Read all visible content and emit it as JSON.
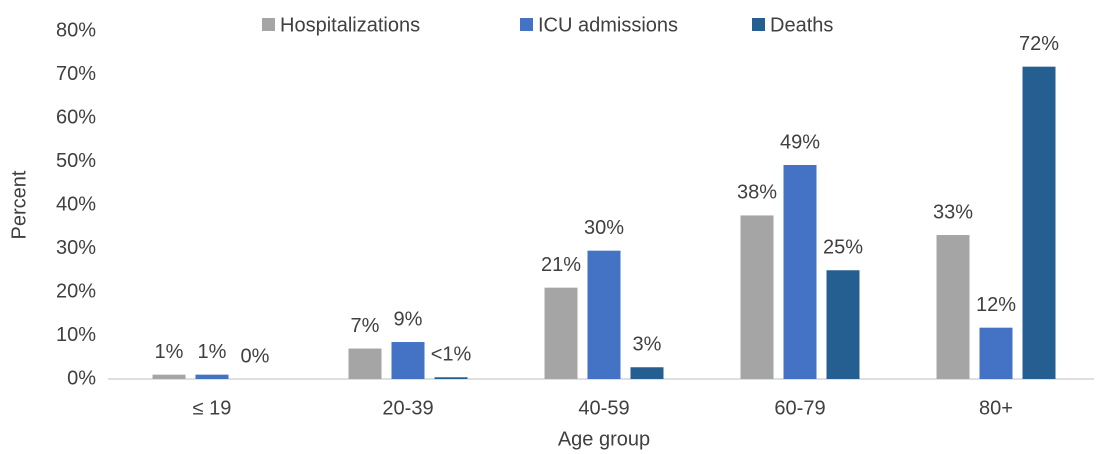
{
  "chart_data": {
    "type": "bar",
    "x_label": "Age group",
    "y_label": "Percent",
    "categories": [
      "≤ 19",
      "20-39",
      "40-59",
      "60-79",
      "80+"
    ],
    "series": [
      {
        "name": "Hospitalizations",
        "color": "#a5a5a5",
        "values": [
          1,
          7,
          21,
          37.6,
          33.1
        ],
        "value_labels": [
          "1%",
          "7%",
          "21%",
          "38%",
          "33%"
        ]
      },
      {
        "name": "ICU admissions",
        "color": "#4472c4",
        "values": [
          1,
          8.5,
          29.5,
          49.2,
          11.8
        ],
        "value_labels": [
          "1%",
          "9%",
          "30%",
          "49%",
          "12%"
        ]
      },
      {
        "name": "Deaths",
        "color": "#255e91",
        "values": [
          0,
          0.4,
          2.7,
          25,
          71.8
        ],
        "value_labels": [
          "0%",
          "<1%",
          "3%",
          "25%",
          "72%"
        ]
      }
    ],
    "ylim": [
      0,
      80
    ],
    "yticks": [
      {
        "value": 0,
        "label": "0%"
      },
      {
        "value": 10,
        "label": "10%"
      },
      {
        "value": 20,
        "label": "20%"
      },
      {
        "value": 30,
        "label": "30%"
      },
      {
        "value": 40,
        "label": "40%"
      },
      {
        "value": 50,
        "label": "50%"
      },
      {
        "value": 60,
        "label": "60%"
      },
      {
        "value": 70,
        "label": "70%"
      },
      {
        "value": 80,
        "label": "80%"
      }
    ],
    "grid": false,
    "legend": "top"
  }
}
